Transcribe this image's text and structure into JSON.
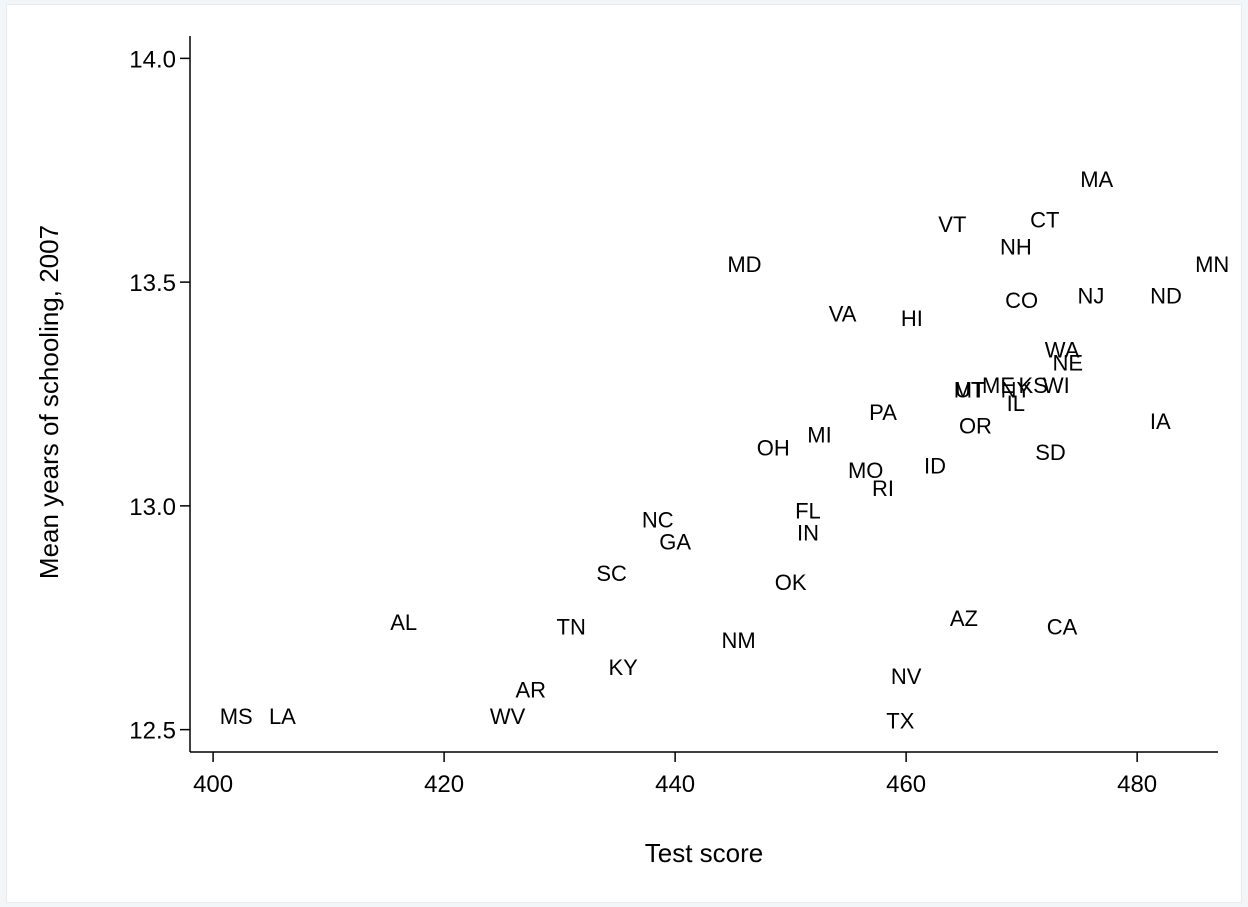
{
  "chart_data": {
    "type": "scatter",
    "title": "",
    "xlabel": "Test score",
    "ylabel": "Mean years of schooling, 2007",
    "xlim": [
      398,
      487
    ],
    "ylim": [
      12.45,
      14.05
    ],
    "xticks": [
      400,
      420,
      440,
      460,
      480
    ],
    "yticks": [
      12.5,
      13.0,
      13.5,
      14.0
    ],
    "xtick_labels": [
      "400",
      "420",
      "440",
      "460",
      "480"
    ],
    "ytick_labels": [
      "12.5",
      "13.0",
      "13.5",
      "14.0"
    ],
    "grid": false,
    "legend": "none",
    "marker": "state-label",
    "points": [
      {
        "label": "MS",
        "x": 402.0,
        "y": 12.53
      },
      {
        "label": "LA",
        "x": 406.0,
        "y": 12.53
      },
      {
        "label": "AL",
        "x": 416.5,
        "y": 12.74
      },
      {
        "label": "WV",
        "x": 425.5,
        "y": 12.53
      },
      {
        "label": "AR",
        "x": 427.5,
        "y": 12.59
      },
      {
        "label": "TN",
        "x": 431.0,
        "y": 12.73
      },
      {
        "label": "KY",
        "x": 435.5,
        "y": 12.64
      },
      {
        "label": "SC",
        "x": 434.5,
        "y": 12.85
      },
      {
        "label": "NC",
        "x": 438.5,
        "y": 12.97
      },
      {
        "label": "GA",
        "x": 440.0,
        "y": 12.92
      },
      {
        "label": "NM",
        "x": 445.5,
        "y": 12.7
      },
      {
        "label": "OK",
        "x": 450.0,
        "y": 12.83
      },
      {
        "label": "FL",
        "x": 451.5,
        "y": 12.99
      },
      {
        "label": "IN",
        "x": 451.5,
        "y": 12.94
      },
      {
        "label": "OH",
        "x": 448.5,
        "y": 13.13
      },
      {
        "label": "MI",
        "x": 452.5,
        "y": 13.16
      },
      {
        "label": "MD",
        "x": 446.0,
        "y": 13.54
      },
      {
        "label": "VA",
        "x": 454.5,
        "y": 13.43
      },
      {
        "label": "MO",
        "x": 456.5,
        "y": 13.08
      },
      {
        "label": "RI",
        "x": 458.0,
        "y": 13.04
      },
      {
        "label": "PA",
        "x": 458.0,
        "y": 13.21
      },
      {
        "label": "ID",
        "x": 462.5,
        "y": 13.09
      },
      {
        "label": "HI",
        "x": 460.5,
        "y": 13.42
      },
      {
        "label": "AZ",
        "x": 465.0,
        "y": 12.75
      },
      {
        "label": "NV",
        "x": 460.0,
        "y": 12.62
      },
      {
        "label": "TX",
        "x": 459.5,
        "y": 12.52
      },
      {
        "label": "VT",
        "x": 464.0,
        "y": 13.63
      },
      {
        "label": "MT",
        "x": 465.5,
        "y": 13.26
      },
      {
        "label": "UT",
        "x": 465.5,
        "y": 13.26
      },
      {
        "label": "OR",
        "x": 466.0,
        "y": 13.18
      },
      {
        "label": "ME",
        "x": 468.0,
        "y": 13.27
      },
      {
        "label": "NY",
        "x": 469.5,
        "y": 13.26
      },
      {
        "label": "KS",
        "x": 471.0,
        "y": 13.27
      },
      {
        "label": "WI",
        "x": 473.0,
        "y": 13.27
      },
      {
        "label": "IL",
        "x": 469.5,
        "y": 13.23
      },
      {
        "label": "NH",
        "x": 469.5,
        "y": 13.58
      },
      {
        "label": "CO",
        "x": 470.0,
        "y": 13.46
      },
      {
        "label": "CT",
        "x": 472.0,
        "y": 13.64
      },
      {
        "label": "SD",
        "x": 472.5,
        "y": 13.12
      },
      {
        "label": "CA",
        "x": 473.5,
        "y": 12.73
      },
      {
        "label": "WA",
        "x": 473.5,
        "y": 13.35
      },
      {
        "label": "NE",
        "x": 474.0,
        "y": 13.32
      },
      {
        "label": "NJ",
        "x": 476.0,
        "y": 13.47
      },
      {
        "label": "MA",
        "x": 476.5,
        "y": 13.73
      },
      {
        "label": "ND",
        "x": 482.5,
        "y": 13.47
      },
      {
        "label": "IA",
        "x": 482.0,
        "y": 13.19
      },
      {
        "label": "MN",
        "x": 486.5,
        "y": 13.54
      }
    ]
  }
}
